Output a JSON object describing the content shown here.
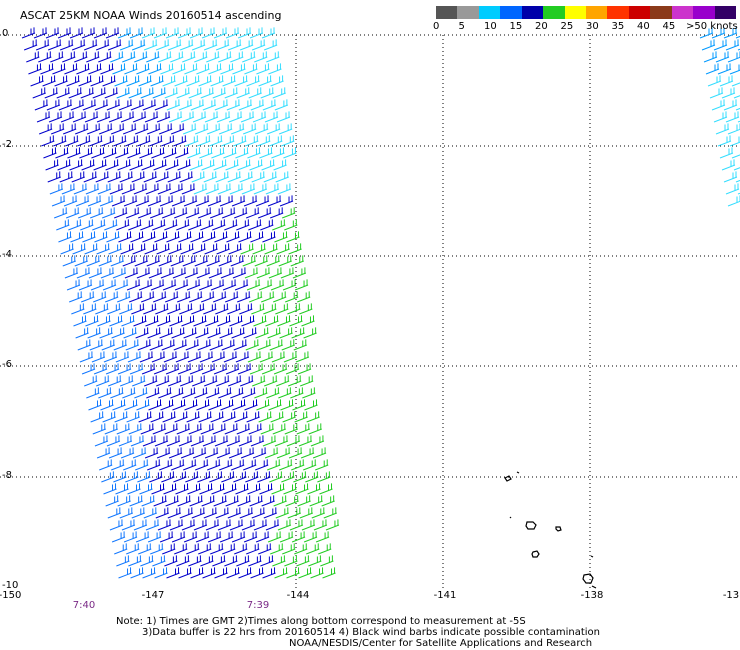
{
  "title": "ASCAT 25KM NOAA Winds 20160514 ascending",
  "legend": {
    "labels": [
      "0",
      "5",
      "10",
      "15",
      "20",
      "25",
      "30",
      "35",
      "40",
      "45",
      ">50 knots"
    ],
    "colors": [
      "#555555",
      "#999999",
      "#00ccff",
      "#0066ff",
      "#0000aa",
      "#22cc22",
      "#ffff00",
      "#ffa500",
      "#ff3300",
      "#cc0000",
      "#8b3a1a",
      "#cc33cc",
      "#9900cc",
      "#330066"
    ]
  },
  "y_ticks": [
    "0",
    "-2",
    "-4",
    "-6",
    "-8",
    "-10"
  ],
  "x_ticks": [
    "-150",
    "-147",
    "-144",
    "-141",
    "-138",
    "-13"
  ],
  "time_labels": [
    "7:40",
    "7:39"
  ],
  "notes": [
    "Note: 1) Times are GMT 2)Times along bottom correspond to measurement at -5S",
    "3)Data buffer is 22 hrs from 20160514 4) Black wind barbs indicate possible contamination",
    "NOAA/NESDIS/Center for Satellite Applications and Research"
  ]
}
